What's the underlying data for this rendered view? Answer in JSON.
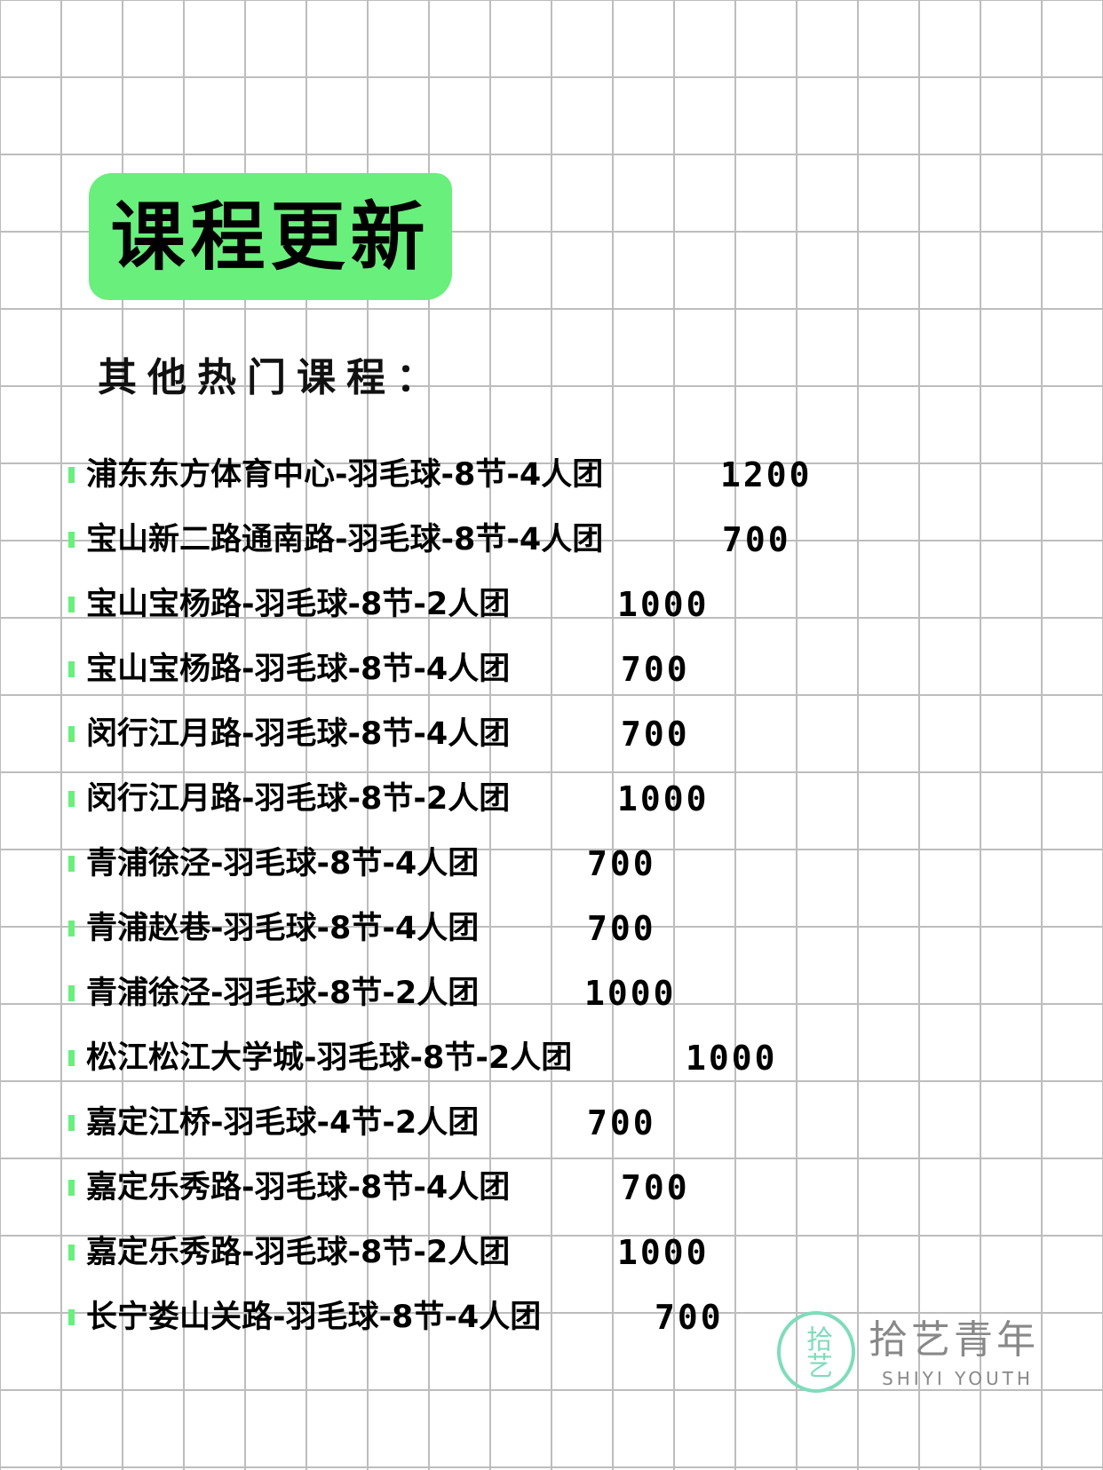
{
  "header": {
    "title": "课程更新",
    "subtitle": "其他热门课程："
  },
  "accent_color": "#69ef7b",
  "courses": [
    {
      "name": "浦东东方体育中心-羽毛球-8节-4人团",
      "price": "1200"
    },
    {
      "name": "宝山新二路通南路-羽毛球-8节-4人团",
      "price": "700"
    },
    {
      "name": "宝山宝杨路-羽毛球-8节-2人团",
      "price": "1000"
    },
    {
      "name": "宝山宝杨路-羽毛球-8节-4人团",
      "price": "700"
    },
    {
      "name": "闵行江月路-羽毛球-8节-4人团",
      "price": "700"
    },
    {
      "name": "闵行江月路-羽毛球-8节-2人团",
      "price": "1000"
    },
    {
      "name": "青浦徐泾-羽毛球-8节-4人团",
      "price": "700"
    },
    {
      "name": "青浦赵巷-羽毛球-8节-4人团",
      "price": "700"
    },
    {
      "name": "青浦徐泾-羽毛球-8节-2人团",
      "price": "1000"
    },
    {
      "name": "松江松江大学城-羽毛球-8节-2人团",
      "price": "1000"
    },
    {
      "name": "嘉定江桥-羽毛球-4节-2人团",
      "price": "700"
    },
    {
      "name": "嘉定乐秀路-羽毛球-8节-4人团",
      "price": "700"
    },
    {
      "name": "嘉定乐秀路-羽毛球-8节-2人团",
      "price": "1000"
    },
    {
      "name": "长宁娄山关路-羽毛球-8节-4人团",
      "price": "700"
    }
  ],
  "logo": {
    "mark": "拾艺",
    "name_cn": "拾艺青年",
    "name_en": "SHIYI YOUTH",
    "color": "#7fdcba"
  }
}
